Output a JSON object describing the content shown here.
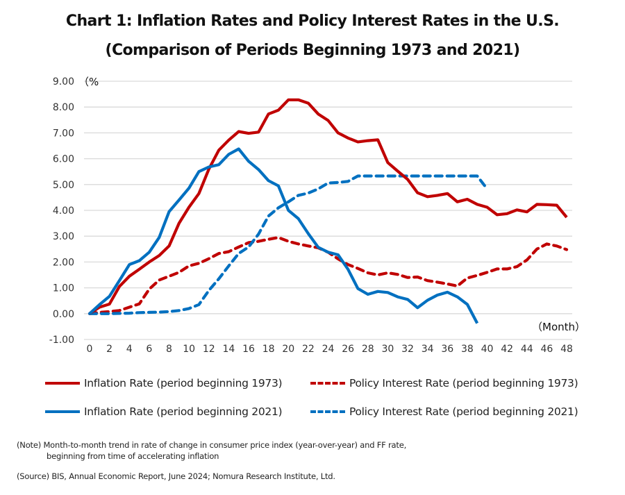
{
  "chart_data": {
    "type": "line",
    "title": "Chart 1: Inflation Rates and Policy Interest Rates in the U.S.",
    "subtitle": "(Comparison of Periods Beginning 1973 and 2021)",
    "xlabel": "（Month）",
    "ylabel": "（%",
    "ylim": [
      -1,
      9
    ],
    "xlim": [
      0,
      48
    ],
    "yticks": [
      "-1.00",
      "0.00",
      "1.00",
      "2.00",
      "3.00",
      "4.00",
      "5.00",
      "6.00",
      "7.00",
      "8.00",
      "9.00"
    ],
    "ytick_values": [
      -1,
      0,
      1,
      2,
      3,
      4,
      5,
      6,
      7,
      8,
      9
    ],
    "xticks": [
      "0",
      "2",
      "4",
      "6",
      "8",
      "10",
      "12",
      "14",
      "16",
      "18",
      "20",
      "22",
      "24",
      "26",
      "28",
      "30",
      "32",
      "34",
      "36",
      "38",
      "40",
      "42",
      "44",
      "46",
      "48"
    ],
    "xtick_values": [
      0,
      2,
      4,
      6,
      8,
      10,
      12,
      14,
      16,
      18,
      20,
      22,
      24,
      26,
      28,
      30,
      32,
      34,
      36,
      38,
      40,
      42,
      44,
      46,
      48
    ],
    "grid": true,
    "legend_position": "bottom",
    "series": [
      {
        "name": "Inflation Rate (period beginning 1973)",
        "color": "#c00000",
        "style": "solid",
        "x": [
          0,
          1,
          2,
          3,
          4,
          5,
          6,
          7,
          8,
          9,
          10,
          11,
          12,
          13,
          14,
          15,
          16,
          17,
          18,
          19,
          20,
          21,
          22,
          23,
          24,
          25,
          26,
          27,
          28,
          29,
          30,
          31,
          32,
          33,
          34,
          35,
          36,
          37,
          38,
          39,
          40,
          41,
          42,
          43,
          44,
          45,
          46,
          47,
          48
        ],
        "values": [
          0,
          0.25,
          0.37,
          1.05,
          1.45,
          1.72,
          2.0,
          2.25,
          2.62,
          3.5,
          4.12,
          4.65,
          5.6,
          6.33,
          6.72,
          7.05,
          6.98,
          7.03,
          7.73,
          7.88,
          8.28,
          8.28,
          8.15,
          7.73,
          7.48,
          7.0,
          6.8,
          6.65,
          6.7,
          6.73,
          5.85,
          5.52,
          5.2,
          4.68,
          4.53,
          4.58,
          4.65,
          4.33,
          4.43,
          4.23,
          4.12,
          3.83,
          3.87,
          4.02,
          3.94,
          4.23,
          4.22,
          4.2,
          3.73
        ]
      },
      {
        "name": "Policy Interest Rate (period beginning 1973)",
        "color": "#c00000",
        "style": "dashed",
        "x": [
          0,
          1,
          2,
          3,
          4,
          5,
          6,
          7,
          8,
          9,
          10,
          11,
          12,
          13,
          14,
          15,
          16,
          17,
          18,
          19,
          20,
          21,
          22,
          23,
          24,
          25,
          26,
          27,
          28,
          29,
          30,
          31,
          32,
          33,
          34,
          35,
          36,
          37,
          38,
          39,
          40,
          41,
          42,
          43,
          44,
          45,
          46,
          47,
          48
        ],
        "values": [
          0,
          0.05,
          0.08,
          0.12,
          0.25,
          0.38,
          0.95,
          1.3,
          1.45,
          1.6,
          1.85,
          1.95,
          2.13,
          2.33,
          2.4,
          2.58,
          2.75,
          2.8,
          2.88,
          2.95,
          2.8,
          2.7,
          2.62,
          2.55,
          2.38,
          2.12,
          1.9,
          1.75,
          1.58,
          1.5,
          1.58,
          1.52,
          1.4,
          1.42,
          1.28,
          1.22,
          1.15,
          1.07,
          1.38,
          1.48,
          1.6,
          1.73,
          1.73,
          1.82,
          2.08,
          2.5,
          2.7,
          2.62,
          2.48
        ]
      },
      {
        "name": "Inflation Rate (period beginning 2021)",
        "color": "#0070c0",
        "style": "solid",
        "x": [
          0,
          1,
          2,
          3,
          4,
          5,
          6,
          7,
          8,
          9,
          10,
          11,
          12,
          13,
          14,
          15,
          16,
          17,
          18,
          19,
          20,
          21,
          22,
          23,
          24,
          25,
          26,
          27,
          28,
          29,
          30,
          31,
          32,
          33,
          34,
          35,
          36,
          37,
          38,
          39
        ],
        "values": [
          0,
          0.35,
          0.67,
          1.28,
          1.9,
          2.05,
          2.38,
          2.95,
          3.95,
          4.4,
          4.86,
          5.5,
          5.68,
          5.77,
          6.17,
          6.38,
          5.9,
          5.58,
          5.15,
          4.95,
          4.0,
          3.68,
          3.1,
          2.57,
          2.38,
          2.28,
          1.72,
          0.97,
          0.75,
          0.86,
          0.82,
          0.65,
          0.55,
          0.23,
          0.52,
          0.72,
          0.83,
          0.65,
          0.36,
          -0.37
        ]
      },
      {
        "name": "Policy Interest Rate (period beginning 2021)",
        "color": "#0070c0",
        "style": "dashed",
        "x": [
          0,
          1,
          2,
          3,
          4,
          5,
          6,
          7,
          8,
          9,
          10,
          11,
          12,
          13,
          14,
          15,
          16,
          17,
          18,
          19,
          20,
          21,
          22,
          23,
          24,
          25,
          26,
          27,
          28,
          29,
          30,
          31,
          32,
          33,
          34,
          35,
          36,
          37,
          38,
          39,
          40
        ],
        "values": [
          0,
          0,
          0,
          0.01,
          0.02,
          0.04,
          0.05,
          0.06,
          0.08,
          0.12,
          0.2,
          0.35,
          0.9,
          1.35,
          1.85,
          2.33,
          2.58,
          3.08,
          3.78,
          4.1,
          4.33,
          4.58,
          4.67,
          4.83,
          5.06,
          5.08,
          5.12,
          5.33,
          5.33,
          5.33,
          5.33,
          5.33,
          5.33,
          5.33,
          5.33,
          5.33,
          5.33,
          5.33,
          5.33,
          5.33,
          4.83
        ]
      }
    ]
  },
  "legend": [
    {
      "label": "Inflation Rate (period beginning 1973)",
      "color": "#c00000",
      "style": "solid"
    },
    {
      "label": "Policy Interest Rate (period beginning 1973)",
      "color": "#c00000",
      "style": "dashed"
    },
    {
      "label": "Inflation Rate (period beginning 2021)",
      "color": "#0070c0",
      "style": "solid"
    },
    {
      "label": "Policy Interest Rate (period beginning 2021)",
      "color": "#0070c0",
      "style": "dashed"
    }
  ],
  "notes": {
    "note_line1": "(Note) Month-to-month trend in rate of change in consumer price index (year-over-year) and FF rate,",
    "note_line2": "beginning from time of accelerating inflation",
    "source": "(Source) BIS, Annual Economic Report, June 2024; Nomura Research Institute, Ltd."
  }
}
